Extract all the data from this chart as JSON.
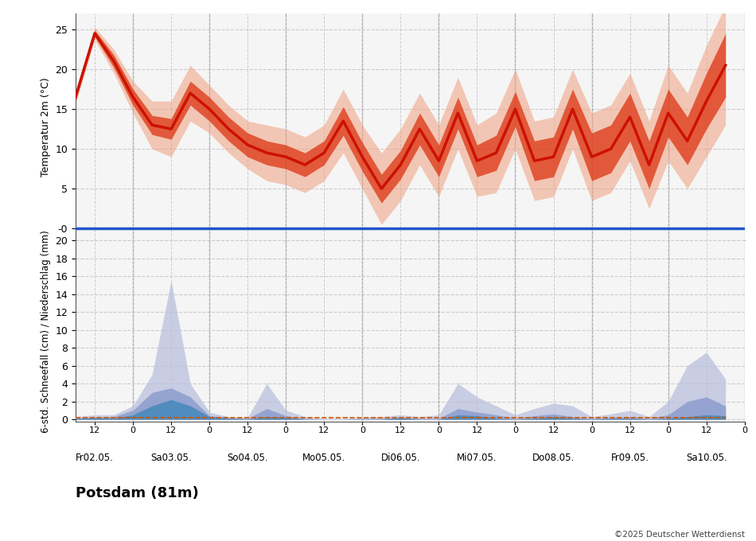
{
  "station": "Potsdam (81m)",
  "copyright": "©2025 Deutscher Wetterdienst",
  "temp_ylabel": "Temperatur 2m (°C)",
  "precip_ylabel": "6-std. Schneefall (cm) / Niederschlag (mm)",
  "temp_ylim": [
    -1.5,
    27
  ],
  "temp_yticks": [
    0,
    5,
    10,
    15,
    20,
    25
  ],
  "temp_ytick_labels": [
    "-0",
    "5",
    "10",
    "15",
    "20",
    "25"
  ],
  "precip_ylim": [
    -0.3,
    20
  ],
  "precip_yticks": [
    0,
    2,
    4,
    6,
    8,
    10,
    12,
    14,
    16,
    18,
    20
  ],
  "days": [
    "Fr02.05.",
    "Sa03.05.",
    "So04.05.",
    "Mo05.05.",
    "Di06.05.",
    "Mi07.05.",
    "Do08.05.",
    "Fr09.05.",
    "Sa10.05."
  ],
  "temp_line_color": "#cc1100",
  "temp_band1_color": "#dd3311",
  "temp_band2_color": "#f0a080",
  "zero_line_color": "#2255cc",
  "precip_rain_color": "#4488bb",
  "precip_snow_inner_color": "#8899cc",
  "precip_snow_outer_color": "#bbc0dd",
  "precip_thresh_color": "#cc5500",
  "grid_color": "#cccccc",
  "vline_color": "#999999",
  "bg_color": "#f5f5f5",
  "temp_mean": [
    16.5,
    24.5,
    21.0,
    16.5,
    13.0,
    12.5,
    17.0,
    15.0,
    12.5,
    10.5,
    9.5,
    9.0,
    8.0,
    9.5,
    13.5,
    9.0,
    5.0,
    8.0,
    12.5,
    8.5,
    14.5,
    8.5,
    9.5,
    15.0,
    8.5,
    9.0,
    15.0,
    9.0,
    10.0,
    14.0,
    8.0,
    14.5,
    11.0,
    16.0,
    20.5
  ],
  "temp_inner_spread": [
    0.4,
    0.4,
    0.8,
    1.0,
    1.2,
    1.3,
    1.5,
    1.5,
    1.5,
    1.5,
    1.5,
    1.5,
    1.5,
    1.5,
    1.8,
    1.8,
    1.8,
    1.8,
    2.0,
    2.0,
    2.0,
    2.0,
    2.2,
    2.2,
    2.5,
    2.5,
    2.5,
    3.0,
    3.0,
    3.0,
    3.0,
    3.0,
    3.0,
    3.5,
    4.0
  ],
  "temp_outer_spread": [
    0.8,
    0.8,
    1.5,
    2.0,
    3.0,
    3.5,
    3.5,
    3.0,
    3.0,
    3.0,
    3.5,
    3.5,
    3.5,
    3.5,
    4.0,
    4.0,
    4.5,
    4.5,
    4.5,
    4.5,
    4.5,
    4.5,
    5.0,
    5.0,
    5.0,
    5.0,
    5.0,
    5.5,
    5.5,
    5.5,
    5.5,
    6.0,
    6.0,
    7.0,
    7.5
  ],
  "precip_snow_outer": [
    0.3,
    0.5,
    0.5,
    1.5,
    5.0,
    15.5,
    4.0,
    0.8,
    0.3,
    0.2,
    4.0,
    1.0,
    0.3,
    0.1,
    0.1,
    0.2,
    0.3,
    0.5,
    0.3,
    0.5,
    4.0,
    2.5,
    1.5,
    0.5,
    1.2,
    1.8,
    1.5,
    0.3,
    0.6,
    1.0,
    0.3,
    2.0,
    6.0,
    7.5,
    4.5
  ],
  "precip_snow_inner": [
    0.1,
    0.2,
    0.3,
    1.0,
    3.0,
    3.5,
    2.5,
    0.4,
    0.2,
    0.1,
    1.2,
    0.4,
    0.1,
    0.0,
    0.0,
    0.1,
    0.1,
    0.2,
    0.1,
    0.1,
    1.2,
    0.8,
    0.5,
    0.1,
    0.4,
    0.6,
    0.3,
    0.1,
    0.2,
    0.3,
    0.1,
    0.5,
    2.0,
    2.5,
    1.5
  ],
  "precip_rain": [
    0.1,
    0.2,
    0.1,
    0.5,
    1.5,
    2.2,
    1.5,
    0.3,
    0.1,
    0.0,
    0.3,
    0.2,
    0.0,
    0.0,
    0.0,
    0.0,
    0.0,
    0.2,
    0.0,
    0.0,
    0.5,
    0.4,
    0.1,
    0.0,
    0.1,
    0.3,
    0.1,
    0.0,
    0.1,
    0.1,
    0.0,
    0.1,
    0.3,
    0.5,
    0.4
  ]
}
